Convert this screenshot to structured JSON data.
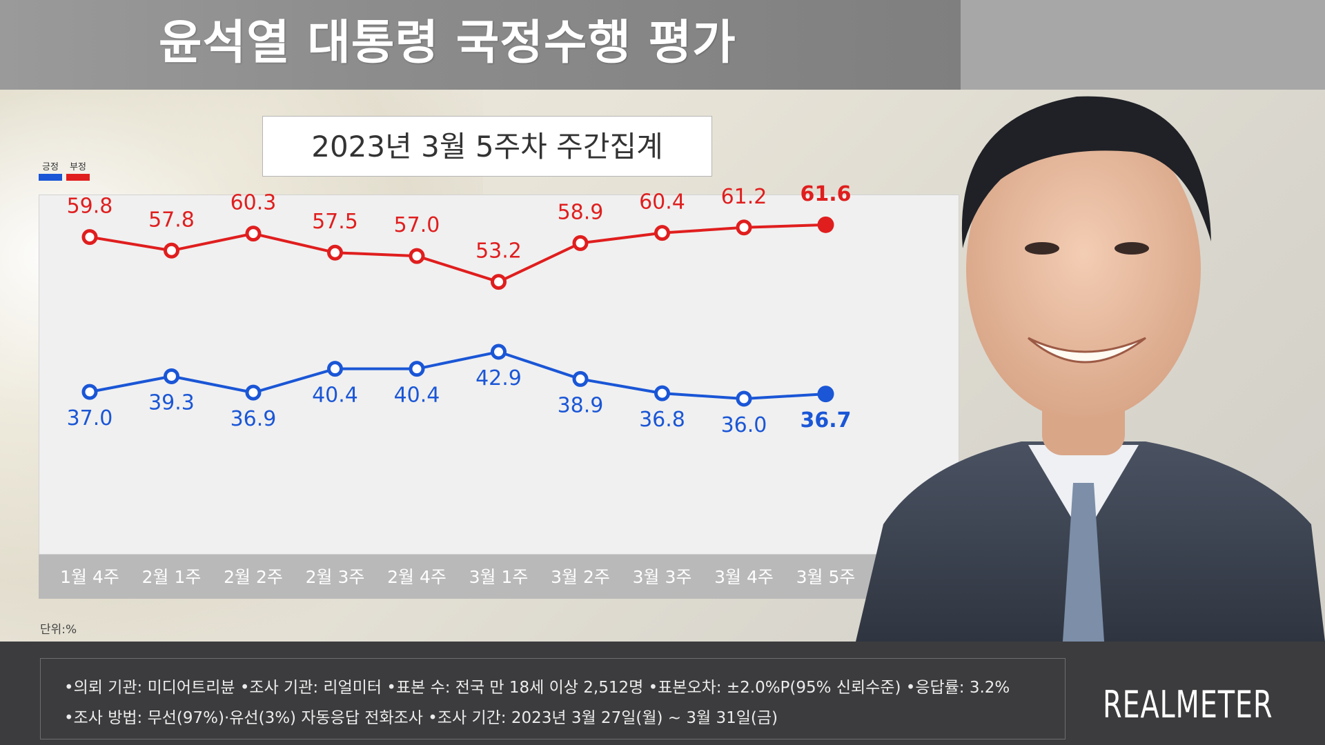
{
  "header": {
    "title": "윤석열 대통령 국정수행 평가",
    "subtitle": "2023년 3월 5주차 주간집계"
  },
  "legend": {
    "positive": "긍정",
    "negative": "부정"
  },
  "unit_label": "단위:%",
  "colors": {
    "positive": "#1a56d6",
    "negative": "#e01e1e",
    "title_bar": "#8c8c8c",
    "footer": "#3c3c3e"
  },
  "chart_data": {
    "type": "line",
    "categories": [
      "1월 4주",
      "2월 1주",
      "2월 2주",
      "2월 3주",
      "2월 4주",
      "3월 1주",
      "3월 2주",
      "3월 3주",
      "3월 4주",
      "3월 5주"
    ],
    "series": [
      {
        "name": "부정",
        "color": "#e01e1e",
        "values": [
          59.8,
          57.8,
          60.3,
          57.5,
          57.0,
          53.2,
          58.9,
          60.4,
          61.2,
          61.6
        ],
        "labels": [
          "59.8",
          "57.8",
          "60.3",
          "57.5",
          "57.0",
          "53.2",
          "58.9",
          "60.4",
          "61.2",
          "61.6"
        ]
      },
      {
        "name": "긍정",
        "color": "#1a56d6",
        "values": [
          37.0,
          39.3,
          36.9,
          40.4,
          40.4,
          42.9,
          38.9,
          36.8,
          36.0,
          36.7
        ],
        "labels": [
          "37.0",
          "39.3",
          "36.9",
          "40.4",
          "40.4",
          "42.9",
          "38.9",
          "36.8",
          "36.0",
          "36.7"
        ]
      }
    ]
  },
  "footer": {
    "line1": "•의뢰 기관: 미디어트리뷴 •조사 기관: 리얼미터 •표본 수: 전국 만 18세 이상 2,512명 •표본오차: ±2.0%P(95% 신뢰수준) •응답률: 3.2%",
    "line2": "•조사 방법: 무선(97%)·유선(3%) 자동응답 전화조사 •조사 기간: 2023년 3월 27일(월) ~ 3월 31일(금)",
    "logo": "REALMETER"
  }
}
